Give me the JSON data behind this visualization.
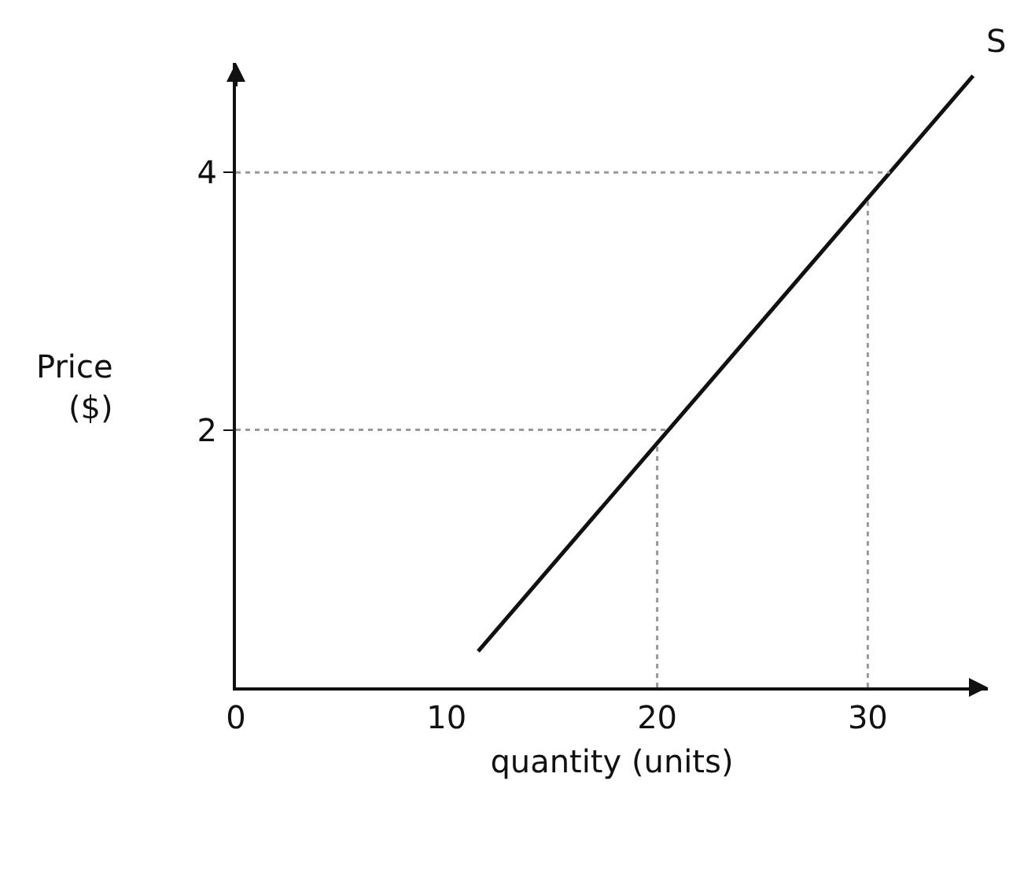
{
  "chart_data": {
    "type": "line",
    "xlabel": "quantity (units)",
    "ylabel": "Price\n($)",
    "x": [
      11.5,
      35
    ],
    "series": [
      {
        "color": "#111111",
        "values": [
          0.28,
          4.75
        ]
      }
    ],
    "xlim": [
      0,
      35.7
    ],
    "ylim": [
      0,
      4.85
    ],
    "xticks": [
      0,
      10,
      20,
      30
    ],
    "yticks": [
      2,
      4
    ],
    "ref_lines": [
      {
        "axis": "y",
        "value": 2,
        "color": "#999999",
        "line_style": "dotted"
      },
      {
        "axis": "y",
        "value": 4,
        "color": "#999999",
        "line_style": "dotted"
      },
      {
        "axis": "x",
        "value": 20,
        "color": "#999999",
        "line_style": "dotted"
      },
      {
        "axis": "x",
        "value": 30,
        "color": "#999999",
        "line_style": "dotted"
      }
    ],
    "annotations": [
      "S"
    ],
    "grid": false,
    "marker": "none",
    "line_style": "solid"
  }
}
